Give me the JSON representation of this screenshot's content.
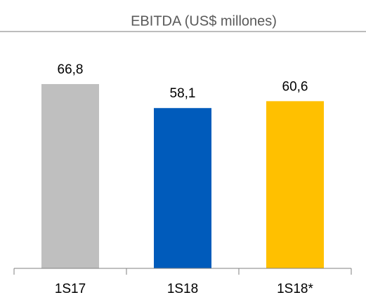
{
  "chart_data": {
    "type": "bar",
    "title": "EBITDA (US$ millones)",
    "categories": [
      "1S17",
      "1S18",
      "1S18*"
    ],
    "values": [
      66.8,
      58.1,
      60.6
    ],
    "value_labels": [
      "66,8",
      "58,1",
      "60,6"
    ],
    "colors": [
      "#bfbfbf",
      "#005bbb",
      "#ffc000"
    ],
    "ylim": [
      0,
      80
    ]
  }
}
